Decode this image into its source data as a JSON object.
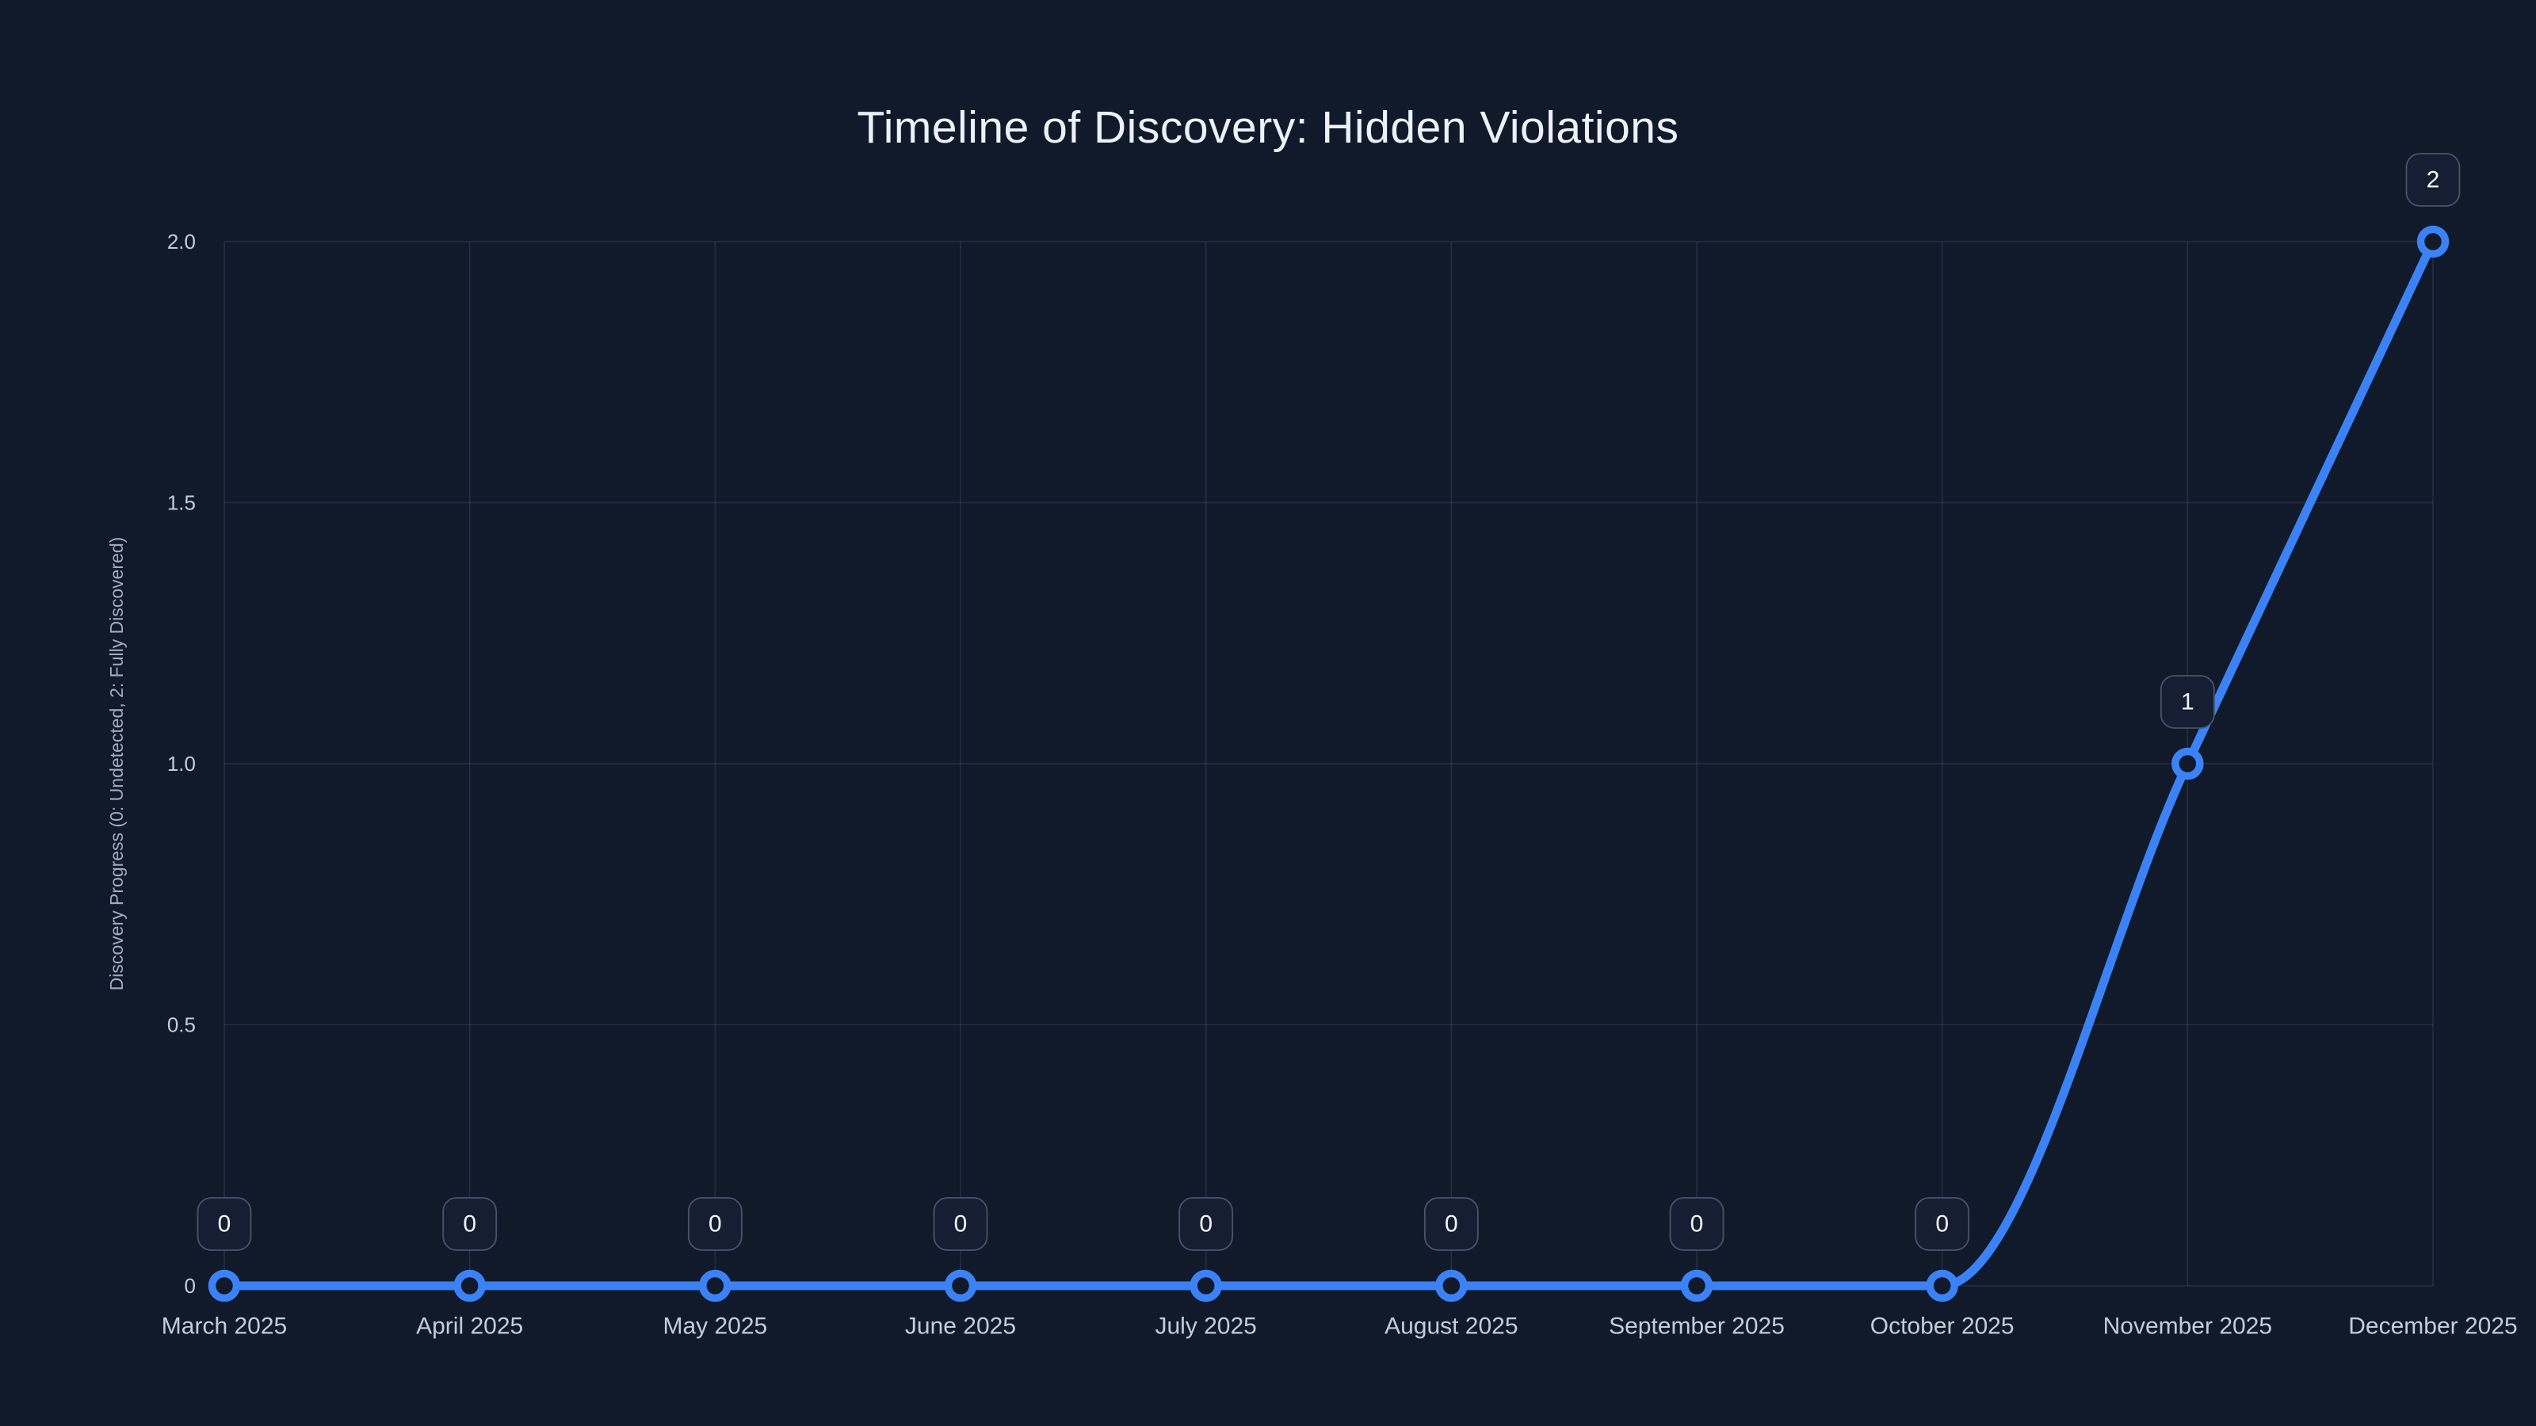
{
  "title": "Timeline of Discovery: Hidden Violations",
  "chart_data": {
    "type": "line",
    "title": "Timeline of Discovery: Hidden Violations",
    "categories": [
      "March 2025",
      "April 2025",
      "May 2025",
      "June 2025",
      "July 2025",
      "August 2025",
      "September 2025",
      "October 2025",
      "November 2025",
      "December 2025"
    ],
    "series": [
      {
        "name": "Discovery Progress",
        "values": [
          0,
          0,
          0,
          0,
          0,
          0,
          0,
          0,
          1,
          2
        ],
        "point_labels": [
          "0",
          "0",
          "0",
          "0",
          "0",
          "0",
          "0",
          "0",
          "1",
          "2"
        ]
      }
    ],
    "xlabel": "",
    "ylabel": "Discovery Progress (0: Undetected, 2: Fully Discovered)",
    "ylim": [
      0,
      2
    ],
    "yticks": [
      0,
      0.5,
      1,
      1.5,
      2
    ],
    "ytick_labels": [
      "0",
      "0.5",
      "1.0",
      "1.5",
      "2.0"
    ],
    "grid": true,
    "legend": "none",
    "line_shape": "monotone-spline",
    "markers": "open-circle",
    "point_label_style": "rounded-badge-above-point"
  },
  "colors": {
    "background": "#111a2b",
    "line": "#3b82f6",
    "marker_ring": "#3b82f6",
    "marker_fill": "#111a2b",
    "grid": "rgba(148,163,184,0.16)",
    "title_text": "#edf1f7",
    "tick_text": "#c3ccd9",
    "axis_title_text": "#a2adbf",
    "badge_fill": "#151e32",
    "badge_border": "#49536a",
    "badge_text": "#f2f5fa"
  }
}
